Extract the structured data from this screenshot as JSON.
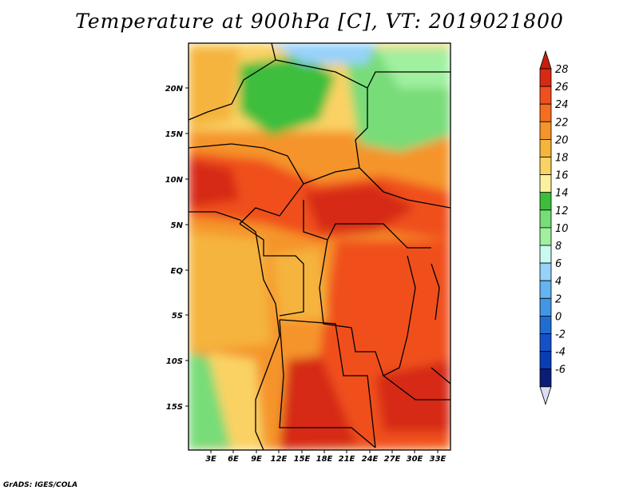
{
  "title": "Temperature at 900hPa [C], VT: 2019021800",
  "credit": "GrADS: IGES/COLA",
  "map": {
    "lat_ticks": [
      "20N",
      "15N",
      "10N",
      "5N",
      "EQ",
      "5S",
      "10S",
      "15S"
    ],
    "lon_ticks": [
      "3E",
      "6E",
      "9E",
      "12E",
      "15E",
      "18E",
      "21E",
      "24E",
      "27E",
      "30E",
      "33E"
    ]
  },
  "colorbar": {
    "levels": [
      "28",
      "26",
      "24",
      "22",
      "20",
      "18",
      "16",
      "14",
      "12",
      "10",
      "8",
      "6",
      "4",
      "2",
      "0",
      "-2",
      "-4",
      "-6"
    ],
    "colors": [
      "#d62a14",
      "#f0501e",
      "#f56e20",
      "#f5942a",
      "#f5b43c",
      "#fad264",
      "#fcf0a0",
      "#3cbe3c",
      "#78dc78",
      "#a0f0a0",
      "#c8faf0",
      "#96d2fa",
      "#64b4f0",
      "#4196e6",
      "#1e6ed2",
      "#1450c8",
      "#0a3cb4",
      "#0a1e78"
    ],
    "top_arrow_color": "#c81e0a",
    "bottom_arrow_color": "#dcdcf5"
  }
}
